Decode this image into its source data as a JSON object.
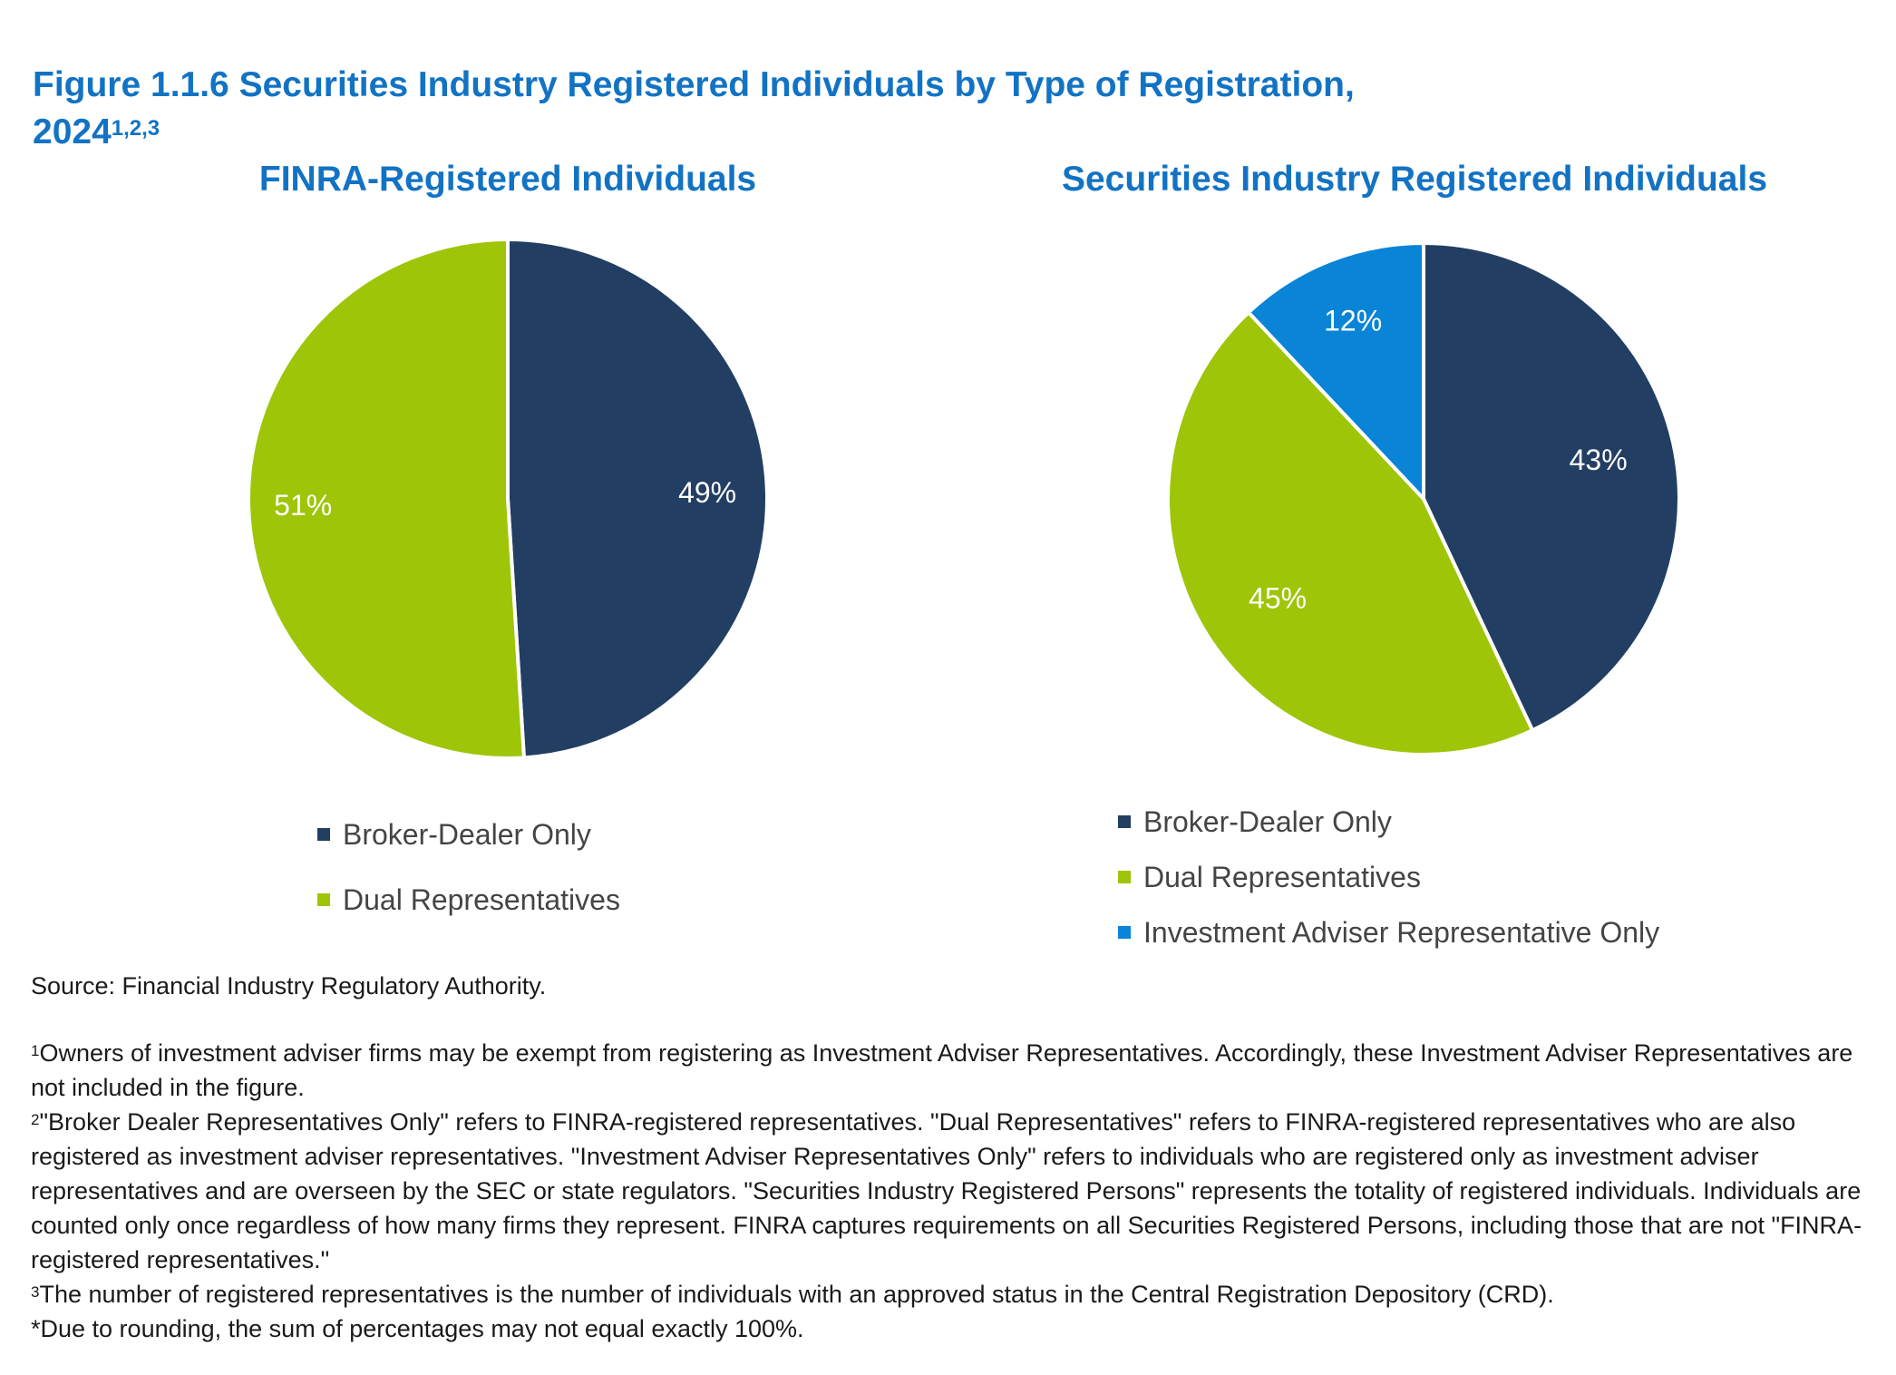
{
  "figure": {
    "title": "Figure 1.1.6 Securities Industry Registered Individuals by Type of Registration,",
    "title_line2": "2024",
    "title_superscript": "1,2,3"
  },
  "colors": {
    "broker_dealer": "#233e63",
    "dual": "#9ec507",
    "investment_adviser": "#0984d6",
    "title_blue": "#1273c4"
  },
  "chart_data": [
    {
      "type": "pie",
      "title": "FINRA-Registered Individuals",
      "categories": [
        "Broker-Dealer Only",
        "Dual Representatives"
      ],
      "values": [
        49,
        51
      ],
      "labels": [
        "49%",
        "51%"
      ],
      "colors": [
        "#233e63",
        "#9ec507"
      ],
      "legend_position": "bottom"
    },
    {
      "type": "pie",
      "title": "Securities Industry Registered Individuals",
      "categories": [
        "Broker-Dealer Only",
        "Dual Representatives",
        "Investment Adviser Representative Only"
      ],
      "values": [
        43,
        45,
        12
      ],
      "labels": [
        "43%",
        "45%",
        "12%"
      ],
      "colors": [
        "#233e63",
        "#9ec507",
        "#0984d6"
      ],
      "legend_position": "bottom"
    }
  ],
  "notes": {
    "source": "Source: Financial Industry Regulatory Authority.",
    "fn1_mark": "1",
    "fn1": "Owners of investment adviser firms may be exempt from registering as Investment Adviser Representatives. Accordingly, these Investment Adviser Representatives are not included in the figure.",
    "fn2_mark": "2",
    "fn2": "\"Broker Dealer Representatives Only\" refers to FINRA-registered representatives. \"Dual Representatives\" refers to FINRA-registered representatives who are also registered as investment adviser representatives. \"Investment Adviser Representatives Only\" refers to individuals who are registered only as investment adviser representatives and are overseen by the SEC or state regulators. \"Securities Industry Registered Persons\" represents the totality of registered individuals. Individuals are counted only once regardless of how many firms they represent. FINRA captures requirements on all Securities Registered Persons, including those that are not \"FINRA-registered representatives.\"",
    "fn3_mark": "3",
    "fn3": "The number of registered representatives is the number of individuals with an approved status in the Central Registration Depository (CRD).",
    "rounding": "*Due to rounding, the sum of percentages may not equal exactly 100%."
  }
}
